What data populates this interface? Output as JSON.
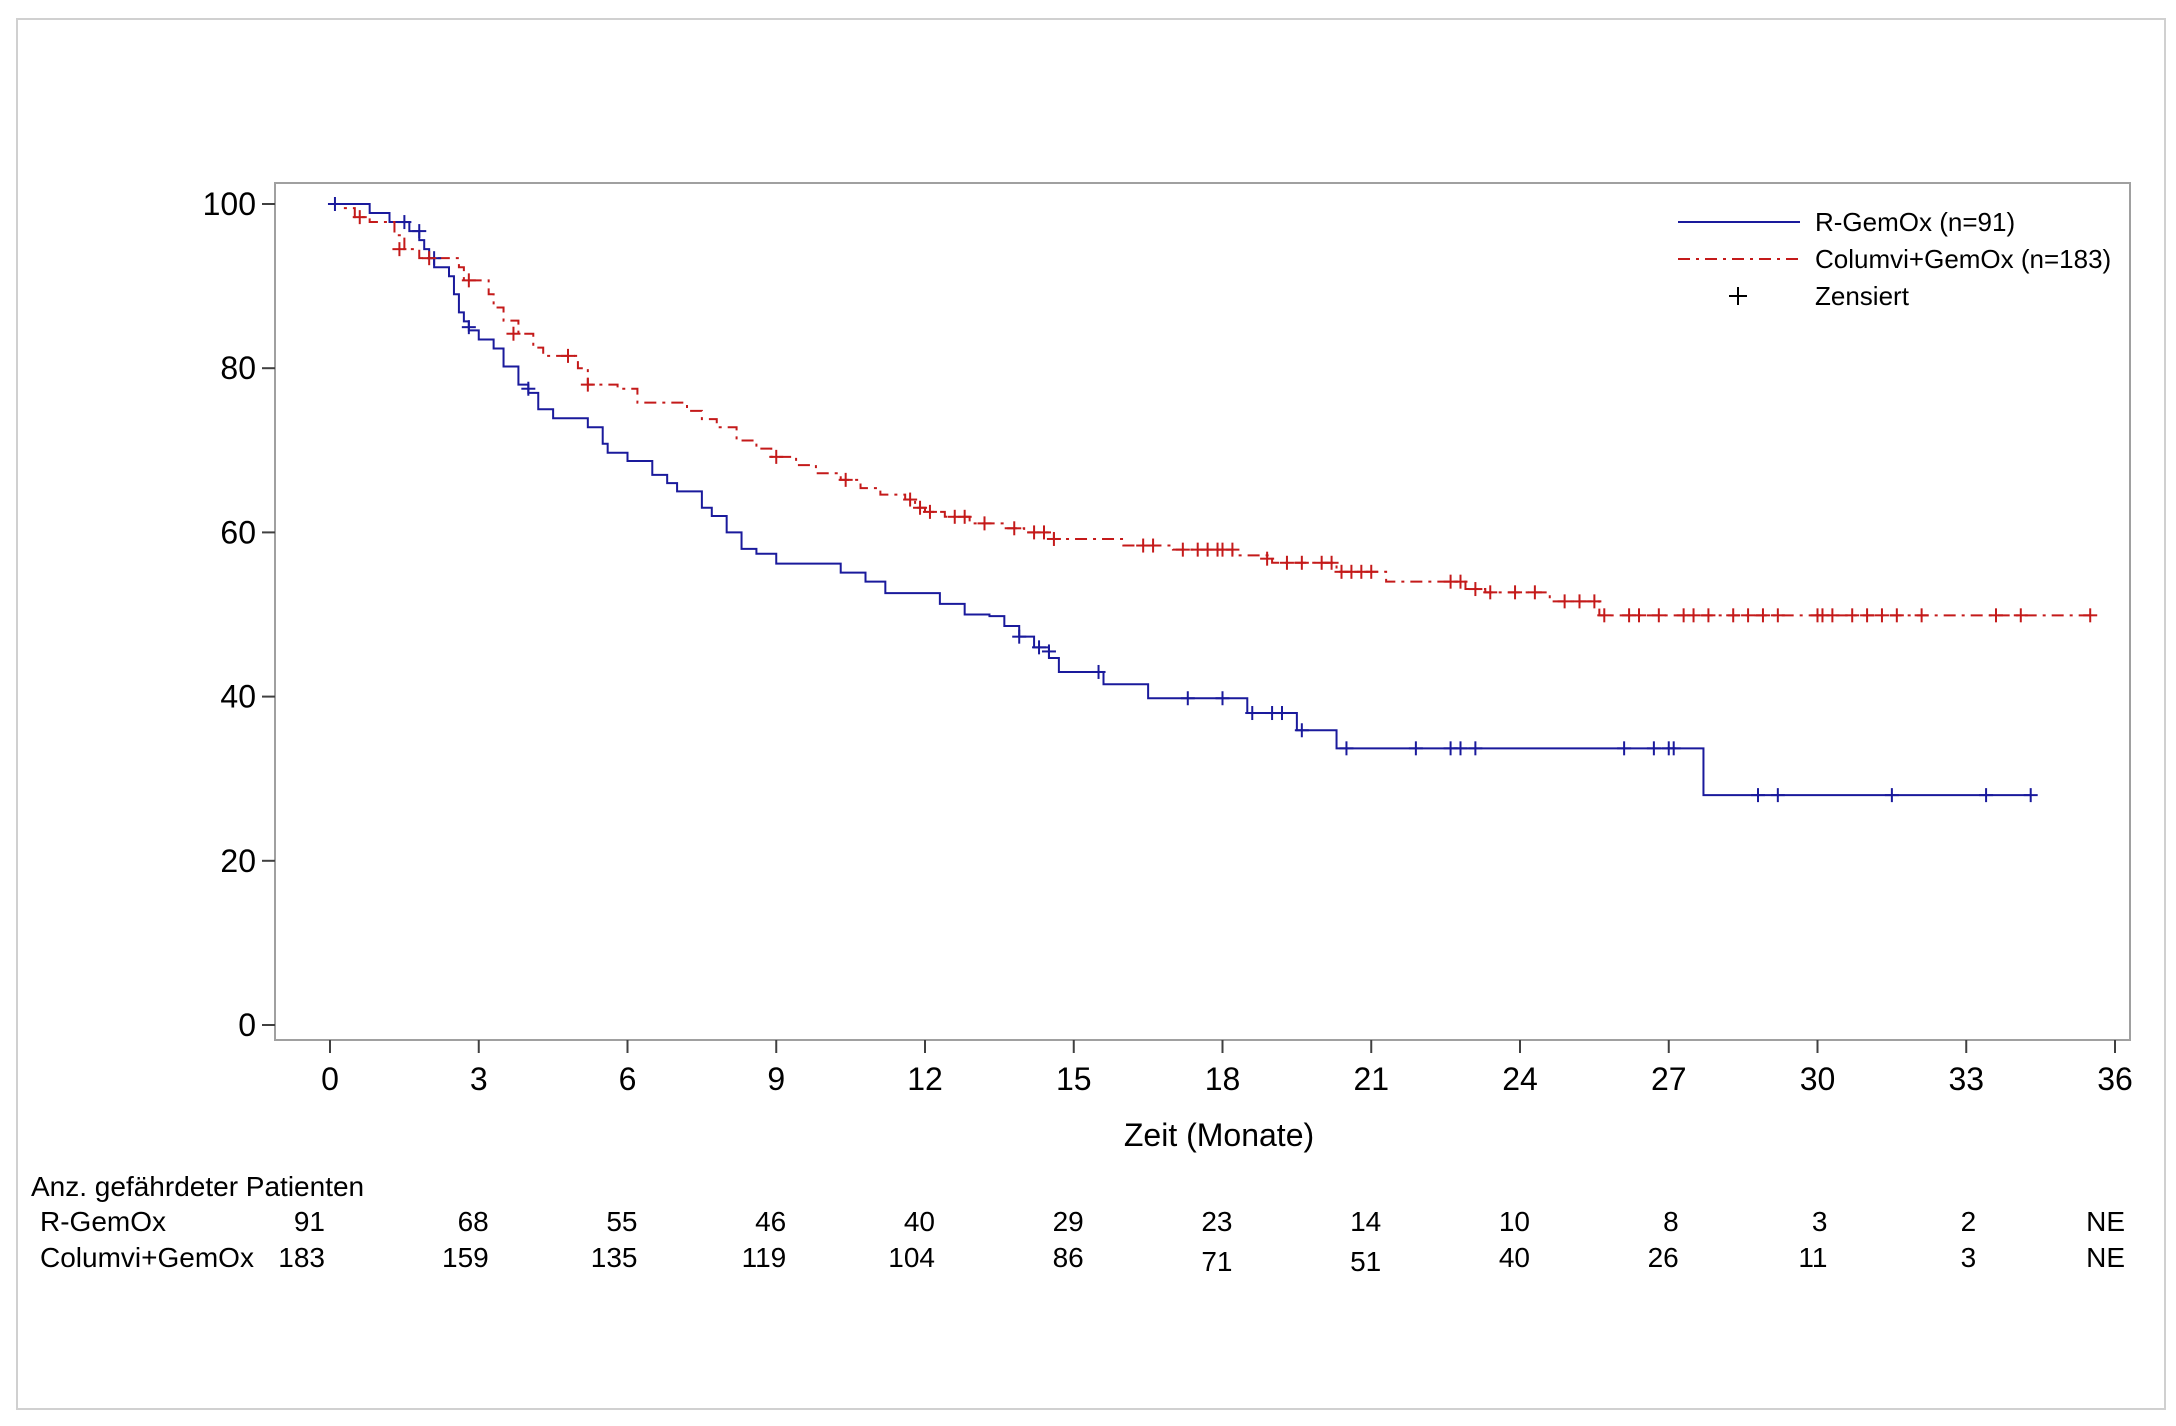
{
  "chart_data": {
    "type": "line",
    "xlabel": "Zeit (Monate)",
    "ylabel": "",
    "xlim": [
      0,
      36
    ],
    "ylim": [
      0,
      100
    ],
    "x_ticks": [
      "0",
      "3",
      "6",
      "9",
      "12",
      "15",
      "18",
      "21",
      "24",
      "27",
      "30",
      "33",
      "36"
    ],
    "y_ticks": [
      "0",
      "20",
      "40",
      "60",
      "80",
      "100"
    ],
    "legend_position": "top-right",
    "censor_label": "Zensiert",
    "series": [
      {
        "name": "R-GemOx (n=91)",
        "color": "#1a1a9c",
        "style": "solid",
        "steps": [
          [
            0,
            100
          ],
          [
            0.8,
            98.9
          ],
          [
            1.2,
            97.8
          ],
          [
            1.6,
            96.7
          ],
          [
            1.8,
            95.6
          ],
          [
            1.9,
            94.5
          ],
          [
            2.0,
            93.4
          ],
          [
            2.1,
            92.3
          ],
          [
            2.4,
            91.2
          ],
          [
            2.5,
            89.0
          ],
          [
            2.6,
            86.8
          ],
          [
            2.7,
            85.7
          ],
          [
            2.8,
            84.6
          ],
          [
            3.0,
            83.5
          ],
          [
            3.3,
            82.4
          ],
          [
            3.5,
            80.2
          ],
          [
            3.8,
            78.0
          ],
          [
            4.0,
            77.0
          ],
          [
            4.2,
            75.0
          ],
          [
            4.5,
            73.9
          ],
          [
            5.2,
            72.8
          ],
          [
            5.5,
            70.8
          ],
          [
            5.6,
            69.7
          ],
          [
            6.0,
            68.7
          ],
          [
            6.5,
            67.0
          ],
          [
            6.8,
            66.0
          ],
          [
            7.0,
            65.0
          ],
          [
            7.5,
            63.0
          ],
          [
            7.7,
            62.0
          ],
          [
            8.0,
            60.0
          ],
          [
            8.3,
            58.0
          ],
          [
            8.6,
            57.4
          ],
          [
            9.0,
            56.2
          ],
          [
            10.3,
            55.1
          ],
          [
            10.8,
            54.0
          ],
          [
            11.2,
            52.6
          ],
          [
            12.3,
            51.3
          ],
          [
            12.8,
            50.0
          ],
          [
            13.3,
            49.8
          ],
          [
            13.6,
            48.6
          ],
          [
            13.9,
            47.3
          ],
          [
            14.2,
            46.0
          ],
          [
            14.5,
            44.7
          ],
          [
            14.7,
            43.0
          ],
          [
            15.6,
            41.5
          ],
          [
            16.5,
            39.8
          ],
          [
            18.5,
            38.0
          ],
          [
            19.5,
            35.9
          ],
          [
            20.3,
            33.7
          ],
          [
            27.7,
            28.0
          ],
          [
            34.3,
            28.0
          ]
        ],
        "censored": [
          [
            0.1,
            100
          ],
          [
            1.5,
            97.8
          ],
          [
            1.8,
            96.7
          ],
          [
            2.1,
            93.4
          ],
          [
            2.8,
            85.0
          ],
          [
            4.0,
            77.5
          ],
          [
            13.9,
            47.3
          ],
          [
            14.3,
            46.0
          ],
          [
            14.5,
            45.5
          ],
          [
            15.5,
            43.0
          ],
          [
            17.3,
            39.8
          ],
          [
            18.0,
            39.8
          ],
          [
            18.6,
            38.0
          ],
          [
            19.0,
            38.0
          ],
          [
            19.2,
            38.0
          ],
          [
            19.6,
            35.9
          ],
          [
            20.5,
            33.7
          ],
          [
            21.9,
            33.7
          ],
          [
            22.6,
            33.7
          ],
          [
            22.8,
            33.7
          ],
          [
            23.1,
            33.7
          ],
          [
            26.1,
            33.7
          ],
          [
            26.7,
            33.7
          ],
          [
            27.0,
            33.7
          ],
          [
            27.1,
            33.7
          ],
          [
            28.8,
            28.0
          ],
          [
            29.2,
            28.0
          ],
          [
            31.5,
            28.0
          ],
          [
            33.4,
            28.0
          ],
          [
            34.3,
            28.0
          ]
        ]
      },
      {
        "name": "Columvi+GemOx (n=183)",
        "color": "#c41a1a",
        "style": "dashdot",
        "steps": [
          [
            0,
            100
          ],
          [
            0.3,
            99.5
          ],
          [
            0.5,
            98.4
          ],
          [
            0.8,
            97.8
          ],
          [
            1.3,
            96.2
          ],
          [
            1.5,
            94.5
          ],
          [
            1.8,
            93.4
          ],
          [
            2.6,
            92.3
          ],
          [
            2.7,
            90.7
          ],
          [
            3.2,
            89.0
          ],
          [
            3.3,
            87.4
          ],
          [
            3.5,
            85.8
          ],
          [
            3.8,
            84.2
          ],
          [
            4.1,
            82.5
          ],
          [
            4.3,
            81.5
          ],
          [
            5.0,
            80.0
          ],
          [
            5.2,
            78.0
          ],
          [
            5.8,
            77.5
          ],
          [
            6.2,
            75.8
          ],
          [
            7.2,
            74.8
          ],
          [
            7.5,
            73.8
          ],
          [
            7.8,
            72.8
          ],
          [
            8.2,
            71.2
          ],
          [
            8.6,
            70.2
          ],
          [
            8.9,
            69.2
          ],
          [
            9.4,
            68.2
          ],
          [
            9.8,
            67.2
          ],
          [
            10.3,
            66.4
          ],
          [
            10.7,
            65.4
          ],
          [
            11.1,
            64.6
          ],
          [
            11.6,
            64.0
          ],
          [
            11.8,
            63.0
          ],
          [
            12.0,
            62.5
          ],
          [
            12.4,
            61.9
          ],
          [
            12.9,
            61.1
          ],
          [
            13.6,
            60.5
          ],
          [
            14.0,
            60.0
          ],
          [
            14.6,
            59.2
          ],
          [
            16.0,
            58.4
          ],
          [
            17.0,
            57.9
          ],
          [
            18.2,
            57.2
          ],
          [
            19.0,
            56.3
          ],
          [
            20.3,
            55.2
          ],
          [
            21.3,
            54.0
          ],
          [
            22.9,
            53.1
          ],
          [
            23.3,
            52.7
          ],
          [
            24.6,
            51.6
          ],
          [
            25.6,
            49.9
          ],
          [
            35.5,
            49.9
          ]
        ],
        "censored": [
          [
            0.6,
            98.4
          ],
          [
            1.4,
            94.5
          ],
          [
            2.0,
            93.4
          ],
          [
            2.8,
            90.7
          ],
          [
            3.7,
            84.2
          ],
          [
            4.8,
            81.5
          ],
          [
            5.2,
            78.0
          ],
          [
            9.0,
            69.2
          ],
          [
            10.4,
            66.4
          ],
          [
            11.7,
            64.0
          ],
          [
            11.9,
            63.0
          ],
          [
            12.1,
            62.5
          ],
          [
            12.6,
            61.9
          ],
          [
            12.8,
            61.9
          ],
          [
            13.2,
            61.1
          ],
          [
            13.8,
            60.5
          ],
          [
            14.2,
            60.0
          ],
          [
            14.4,
            60.0
          ],
          [
            14.6,
            59.2
          ],
          [
            16.4,
            58.4
          ],
          [
            16.6,
            58.4
          ],
          [
            17.2,
            57.9
          ],
          [
            17.5,
            57.9
          ],
          [
            17.7,
            57.9
          ],
          [
            17.9,
            57.9
          ],
          [
            18.0,
            57.9
          ],
          [
            18.2,
            57.9
          ],
          [
            18.9,
            56.8
          ],
          [
            19.3,
            56.3
          ],
          [
            19.6,
            56.3
          ],
          [
            20.0,
            56.3
          ],
          [
            20.2,
            56.3
          ],
          [
            20.4,
            55.2
          ],
          [
            20.6,
            55.2
          ],
          [
            20.8,
            55.2
          ],
          [
            21.0,
            55.2
          ],
          [
            22.6,
            54.0
          ],
          [
            22.8,
            54.0
          ],
          [
            23.1,
            53.1
          ],
          [
            23.4,
            52.7
          ],
          [
            23.9,
            52.7
          ],
          [
            24.3,
            52.7
          ],
          [
            24.9,
            51.6
          ],
          [
            25.2,
            51.6
          ],
          [
            25.5,
            51.6
          ],
          [
            25.7,
            49.9
          ],
          [
            26.2,
            49.9
          ],
          [
            26.4,
            49.9
          ],
          [
            26.8,
            49.9
          ],
          [
            27.3,
            49.9
          ],
          [
            27.5,
            49.9
          ],
          [
            27.8,
            49.9
          ],
          [
            28.3,
            49.9
          ],
          [
            28.6,
            49.9
          ],
          [
            28.9,
            49.9
          ],
          [
            29.2,
            49.9
          ],
          [
            30.0,
            49.9
          ],
          [
            30.1,
            49.9
          ],
          [
            30.3,
            49.9
          ],
          [
            30.7,
            49.9
          ],
          [
            31.0,
            49.9
          ],
          [
            31.3,
            49.9
          ],
          [
            31.6,
            49.9
          ],
          [
            32.1,
            49.9
          ],
          [
            33.6,
            49.9
          ],
          [
            34.1,
            49.9
          ],
          [
            35.5,
            49.9
          ]
        ]
      }
    ]
  },
  "risk_table": {
    "title": "Anz. gefährdeter Patienten",
    "rows": [
      {
        "label": "R-GemOx",
        "values": [
          "91",
          "68",
          "55",
          "46",
          "40",
          "29",
          "23",
          "14",
          "10",
          "8",
          "3",
          "2",
          "NE"
        ]
      },
      {
        "label": "Columvi+GemOx",
        "values": [
          "183",
          "159",
          "135",
          "119",
          "104",
          "86",
          "71",
          "51",
          "40",
          "26",
          "11",
          "3",
          "NE"
        ]
      }
    ]
  }
}
